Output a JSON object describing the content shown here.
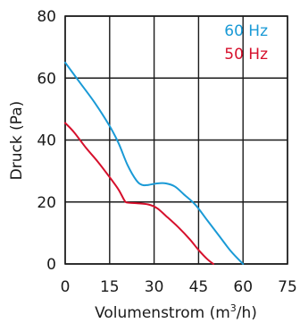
{
  "chart_data": {
    "type": "line",
    "xlabel": "Volumenstrom (m",
    "xlabel_sup": "3",
    "xlabel_tail": "/h)",
    "ylabel": "Druck (Pa)",
    "xlim": [
      0,
      75
    ],
    "ylim": [
      0,
      80
    ],
    "x_ticks": [
      {
        "value": 0,
        "label": "0"
      },
      {
        "value": 15,
        "label": "15"
      },
      {
        "value": 30,
        "label": "30"
      },
      {
        "value": 45,
        "label": "45"
      },
      {
        "value": 60,
        "label": "60"
      },
      {
        "value": 75,
        "label": "75"
      }
    ],
    "y_ticks": [
      {
        "value": 0,
        "label": "0"
      },
      {
        "value": 20,
        "label": "20"
      },
      {
        "value": 40,
        "label": "40"
      },
      {
        "value": 60,
        "label": "60"
      },
      {
        "value": 80,
        "label": "80"
      }
    ],
    "grid": true,
    "legend_position": "top-right",
    "series": [
      {
        "name": "60 Hz",
        "color": "#1a9ad6",
        "points": [
          [
            0,
            65
          ],
          [
            5,
            58.5
          ],
          [
            10,
            52
          ],
          [
            15,
            44.5
          ],
          [
            18,
            39
          ],
          [
            21,
            32
          ],
          [
            24,
            27
          ],
          [
            26,
            25.5
          ],
          [
            28,
            25.5
          ],
          [
            31,
            26
          ],
          [
            34,
            26
          ],
          [
            37,
            25
          ],
          [
            40,
            22.5
          ],
          [
            44,
            19
          ],
          [
            48,
            14
          ],
          [
            52,
            9
          ],
          [
            56,
            4
          ],
          [
            60,
            0
          ]
        ]
      },
      {
        "name": "50 Hz",
        "color": "#d6102c",
        "points": [
          [
            0,
            45.5
          ],
          [
            3,
            42.5
          ],
          [
            7,
            37.5
          ],
          [
            11,
            33
          ],
          [
            15,
            28
          ],
          [
            18,
            24
          ],
          [
            20,
            20.5
          ],
          [
            21,
            19.8
          ],
          [
            24,
            19.6
          ],
          [
            28,
            19.2
          ],
          [
            31,
            18
          ],
          [
            34,
            15.5
          ],
          [
            38,
            12
          ],
          [
            42,
            8
          ],
          [
            45,
            4.5
          ],
          [
            48,
            1.5
          ],
          [
            50,
            0
          ]
        ]
      }
    ]
  }
}
